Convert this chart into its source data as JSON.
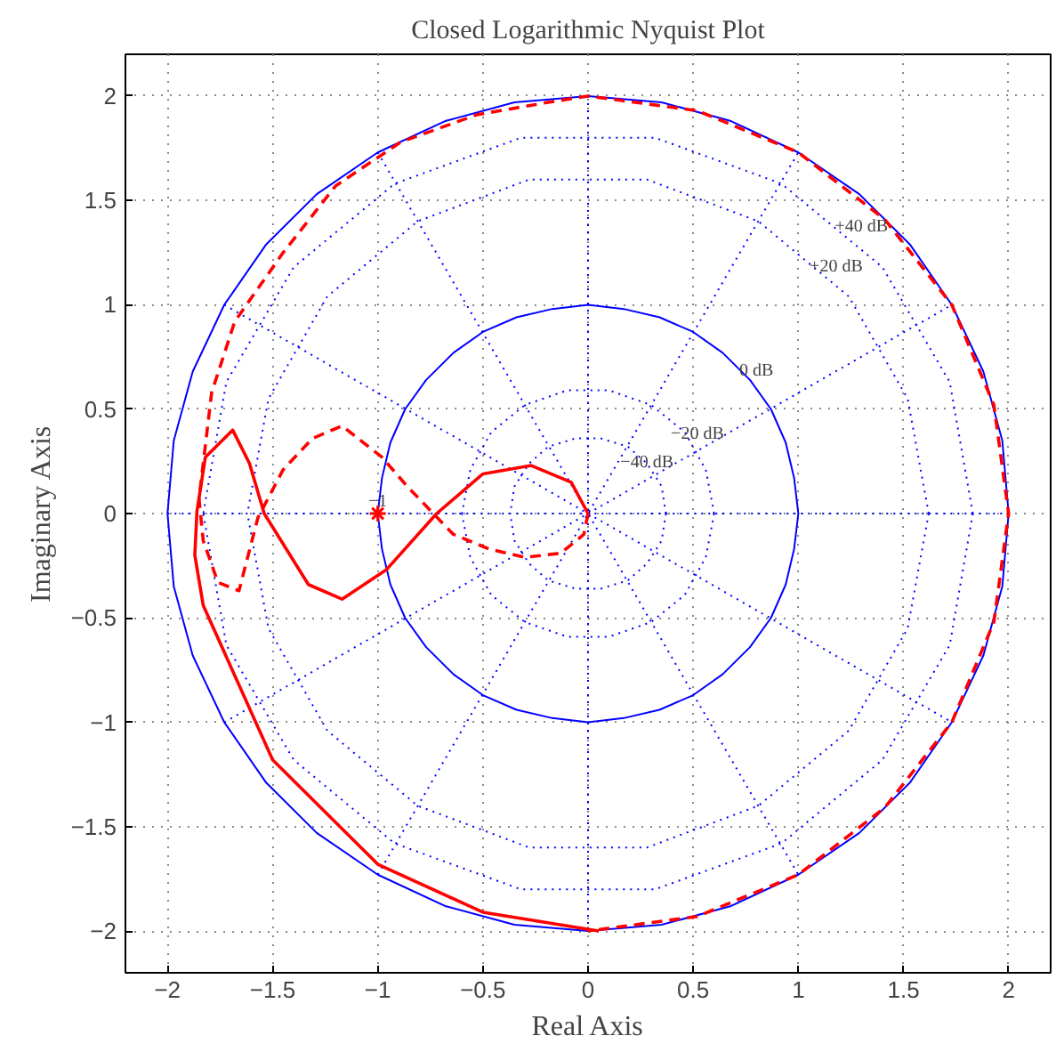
{
  "chart_data": {
    "type": "line",
    "title": "Closed Logarithmic Nyquist Plot",
    "xlabel": "Real Axis",
    "ylabel": "Imaginary Axis",
    "xlim": [
      -2.2,
      2.2
    ],
    "ylim": [
      -2.2,
      2.2
    ],
    "xticks": [
      -2,
      -1.5,
      -1,
      -0.5,
      0,
      0.5,
      1,
      1.5,
      2
    ],
    "yticks": [
      -2,
      -1.5,
      -1,
      -0.5,
      0,
      0.5,
      1,
      1.5,
      2
    ],
    "grid": true,
    "marker": "none",
    "series": [
      {
        "line_style": "dotted",
        "color": "#0000ff",
        "x": [
          -2,
          2
        ],
        "values": [
          0,
          0
        ]
      },
      {
        "line_style": "dotted",
        "color": "#0000ff",
        "x": [
          0,
          0
        ],
        "values": [
          -2,
          2
        ]
      },
      {
        "line_style": "dotted",
        "color": "#0000ff",
        "x": [
          -1.73,
          1.73
        ],
        "values": [
          -1,
          1
        ]
      },
      {
        "line_style": "dotted",
        "color": "#0000ff",
        "x": [
          -1,
          1
        ],
        "values": [
          -1.73,
          1.73
        ]
      },
      {
        "line_style": "dotted",
        "color": "#0000ff",
        "x": [
          -1,
          1
        ],
        "values": [
          1.73,
          -1.73
        ]
      },
      {
        "line_style": "dotted",
        "color": "#0000ff",
        "x": [
          -1.73,
          1.73
        ],
        "values": [
          1,
          -1
        ]
      },
      {
        "line_style": "dotted",
        "color": "#0000ff",
        "x": [
          1.62,
          1.52,
          1.24,
          0.81,
          0.28,
          -0.28,
          -0.81,
          -1.24,
          -1.52,
          -1.62,
          null,
          1.62,
          1.52,
          1.24,
          0.81,
          0.28,
          -0.28,
          -0.81,
          -1.24,
          -1.52,
          -1.62
        ],
        "values": [
          0,
          0.55,
          1.04,
          1.4,
          1.6,
          1.6,
          1.4,
          1.04,
          0.55,
          0,
          null,
          0,
          -0.55,
          -1.04,
          -1.4,
          -1.6,
          -1.6,
          -1.4,
          -1.04,
          -0.55,
          0
        ]
      },
      {
        "line_style": "dotted",
        "color": "#0000ff",
        "x": [
          1.83,
          1.72,
          1.4,
          0.92,
          0.32,
          -0.32,
          -0.92,
          -1.4,
          -1.72,
          -1.83,
          null,
          1.83,
          1.72,
          1.4,
          0.92,
          0.32,
          -0.32,
          -0.92,
          -1.4,
          -1.72,
          -1.83
        ],
        "values": [
          0,
          0.63,
          1.18,
          1.58,
          1.8,
          1.8,
          1.58,
          1.18,
          0.63,
          0,
          null,
          0,
          -0.63,
          -1.18,
          -1.58,
          -1.8,
          -1.8,
          -1.58,
          -1.18,
          -0.63,
          0
        ]
      },
      {
        "line_style": "dotted",
        "color": "#0000ff",
        "x": [
          0.6,
          0.56,
          0.46,
          0.3,
          0.1,
          -0.1,
          -0.3,
          -0.46,
          -0.56,
          -0.6,
          null,
          0.6,
          0.56,
          0.46,
          0.3,
          0.1,
          -0.1,
          -0.3,
          -0.46,
          -0.56,
          -0.6
        ],
        "values": [
          0,
          0.21,
          0.39,
          0.52,
          0.59,
          0.59,
          0.52,
          0.39,
          0.21,
          0,
          null,
          0,
          -0.21,
          -0.39,
          -0.52,
          -0.59,
          -0.59,
          -0.52,
          -0.39,
          -0.21,
          0
        ]
      },
      {
        "line_style": "dotted",
        "color": "#0000ff",
        "x": [
          0.37,
          0.35,
          0.28,
          0.19,
          0.06,
          -0.06,
          -0.19,
          -0.28,
          -0.35,
          -0.37,
          null,
          0.37,
          0.35,
          0.28,
          0.19,
          0.06,
          -0.06,
          -0.19,
          -0.28,
          -0.35,
          -0.37
        ],
        "values": [
          0,
          0.13,
          0.24,
          0.32,
          0.36,
          0.36,
          0.32,
          0.24,
          0.13,
          0,
          null,
          0,
          -0.13,
          -0.24,
          -0.32,
          -0.36,
          -0.36,
          -0.32,
          -0.24,
          -0.13,
          0
        ]
      },
      {
        "line_style": "solid",
        "color": "#0000ff",
        "x": [
          1,
          0.98,
          0.94,
          0.87,
          0.77,
          0.64,
          0.5,
          0.34,
          0.17,
          0,
          -0.17,
          -0.34,
          -0.5,
          -0.64,
          -0.77,
          -0.87,
          -0.94,
          -0.98,
          -1,
          null,
          1,
          0.98,
          0.94,
          0.87,
          0.77,
          0.64,
          0.5,
          0.34,
          0.17,
          0,
          -0.17,
          -0.34,
          -0.5,
          -0.64,
          -0.77,
          -0.87,
          -0.94,
          -0.98,
          -1
        ],
        "values": [
          0,
          0.17,
          0.34,
          0.5,
          0.64,
          0.77,
          0.87,
          0.94,
          0.98,
          1,
          0.98,
          0.94,
          0.87,
          0.77,
          0.64,
          0.5,
          0.34,
          0.17,
          0,
          null,
          0,
          -0.17,
          -0.34,
          -0.5,
          -0.64,
          -0.77,
          -0.87,
          -0.94,
          -0.98,
          -1,
          -0.98,
          -0.94,
          -0.87,
          -0.77,
          -0.64,
          -0.5,
          -0.34,
          -0.17,
          0
        ]
      },
      {
        "line_style": "solid",
        "color": "#0000ff",
        "x": [
          2,
          1.97,
          1.88,
          1.73,
          1.53,
          1.29,
          1,
          0.68,
          0.35,
          0,
          -0.35,
          -0.68,
          -1,
          -1.29,
          -1.53,
          -1.73,
          -1.88,
          -1.97,
          -2,
          null,
          2,
          1.97,
          1.88,
          1.73,
          1.53,
          1.29,
          1,
          0.68,
          0.35,
          0,
          -0.35,
          -0.68,
          -1,
          -1.29,
          -1.53,
          -1.73,
          -1.88,
          -1.97,
          -2
        ],
        "values": [
          0,
          0.35,
          0.68,
          1,
          1.29,
          1.53,
          1.73,
          1.88,
          1.97,
          2,
          1.97,
          1.88,
          1.73,
          1.53,
          1.29,
          1,
          0.68,
          0.35,
          0,
          null,
          0,
          -0.35,
          -0.68,
          -1,
          -1.29,
          -1.53,
          -1.73,
          -1.88,
          -1.97,
          -2,
          -1.97,
          -1.88,
          -1.73,
          -1.53,
          -1.29,
          -1,
          -0.68,
          -0.35,
          0
        ]
      },
      {
        "line_style": "dashed",
        "color": "#ff0000",
        "x": [
          0,
          -0.02,
          -0.13,
          -0.3,
          -0.47,
          -0.64,
          -0.86,
          -0.98,
          -1.17,
          -1.31,
          -1.45,
          -1.57,
          -1.66,
          -1.76,
          -1.83,
          -1.85,
          -1.79,
          -1.68,
          -1.45,
          -1.2,
          -0.89,
          -0.53,
          -0.19,
          0,
          0.52,
          1,
          1.41,
          1.73,
          1.93,
          2,
          1.93,
          1.73,
          1.41,
          1,
          0.52,
          0
        ],
        "values": [
          0,
          -0.1,
          -0.19,
          -0.21,
          -0.17,
          -0.1,
          0.13,
          0.27,
          0.42,
          0.36,
          0.21,
          -0.02,
          -0.37,
          -0.33,
          -0.13,
          0.07,
          0.58,
          0.92,
          1.25,
          1.57,
          1.78,
          1.91,
          1.97,
          2,
          1.93,
          1.73,
          1.41,
          1,
          0.52,
          0,
          -0.52,
          -1,
          -1.41,
          -1.73,
          -1.93,
          -2
        ]
      },
      {
        "line_style": "solid",
        "color": "#ff0000",
        "x": [
          0.05,
          -0.5,
          -1,
          -1.5,
          -1.83,
          -1.87,
          -1.86,
          -1.82,
          -1.69,
          -1.61,
          -1.54,
          -1.33,
          -1.17,
          -0.96,
          -0.72,
          -0.5,
          -0.27,
          -0.08,
          0
        ],
        "values": [
          -2,
          -1.91,
          -1.68,
          -1.18,
          -0.44,
          -0.2,
          0.01,
          0.27,
          0.4,
          0.24,
          0,
          -0.34,
          -0.41,
          -0.27,
          0,
          0.19,
          0.23,
          0.15,
          0
        ]
      },
      {
        "type": "scatter",
        "marker": "cross",
        "color": "#ff0000",
        "x": [
          -1
        ],
        "values": [
          0
        ]
      }
    ],
    "annotations": [
      {
        "text": "−1",
        "x": -1,
        "y": 0
      },
      {
        "text": "0 dB",
        "x": 0.8,
        "y": 0.6
      },
      {
        "text": "−20 dB",
        "x": 0.52,
        "y": 0.3
      },
      {
        "text": "−40 dB",
        "x": 0.28,
        "y": 0.16
      },
      {
        "text": "+20 dB",
        "x": 1.18,
        "y": 1.1
      },
      {
        "text": "+40 dB",
        "x": 1.3,
        "y": 1.29
      }
    ]
  }
}
